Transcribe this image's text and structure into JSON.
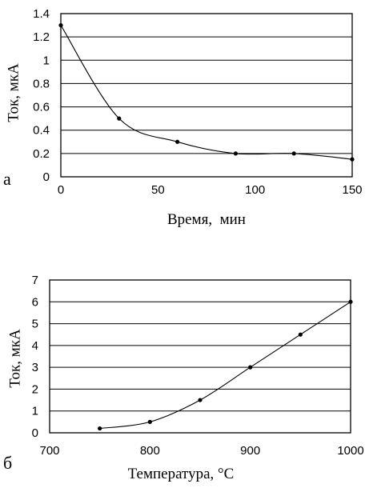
{
  "chart_data": [
    {
      "type": "line",
      "panel_label": "а",
      "xlabel": "Время,  мин",
      "ylabel": "Ток, мкА",
      "xlim": [
        0,
        150
      ],
      "ylim": [
        0,
        1.4
      ],
      "xticks": [
        0,
        50,
        100,
        150
      ],
      "yticks": [
        0,
        0.2,
        0.4,
        0.6,
        0.8,
        1,
        1.2,
        1.4
      ],
      "xtick_labels": [
        "0",
        "50",
        "100",
        "150"
      ],
      "ytick_labels": [
        "0",
        "0.2",
        "0.4",
        "0.6",
        "0.8",
        "1",
        "1.2",
        "1.4"
      ],
      "grid": "horizontal",
      "legend": "none",
      "series": [
        {
          "x": [
            0,
            30,
            60,
            90,
            120,
            150
          ],
          "y": [
            1.3,
            0.5,
            0.3,
            0.2,
            0.2,
            0.15
          ]
        }
      ]
    },
    {
      "type": "line",
      "panel_label": "б",
      "xlabel": "Температура, °C",
      "ylabel": "Ток, мкА",
      "xlim": [
        700,
        1000
      ],
      "ylim": [
        0,
        7
      ],
      "xticks": [
        700,
        800,
        900,
        1000
      ],
      "yticks": [
        0,
        1,
        2,
        3,
        4,
        5,
        6,
        7
      ],
      "xtick_labels": [
        "700",
        "800",
        "900",
        "1000"
      ],
      "ytick_labels": [
        "0",
        "1",
        "2",
        "3",
        "4",
        "5",
        "6",
        "7"
      ],
      "grid": "horizontal",
      "legend": "none",
      "series": [
        {
          "x": [
            750,
            800,
            850,
            900,
            950,
            1000
          ],
          "y": [
            0.2,
            0.5,
            1.5,
            3.0,
            4.5,
            6.0
          ]
        }
      ]
    }
  ]
}
